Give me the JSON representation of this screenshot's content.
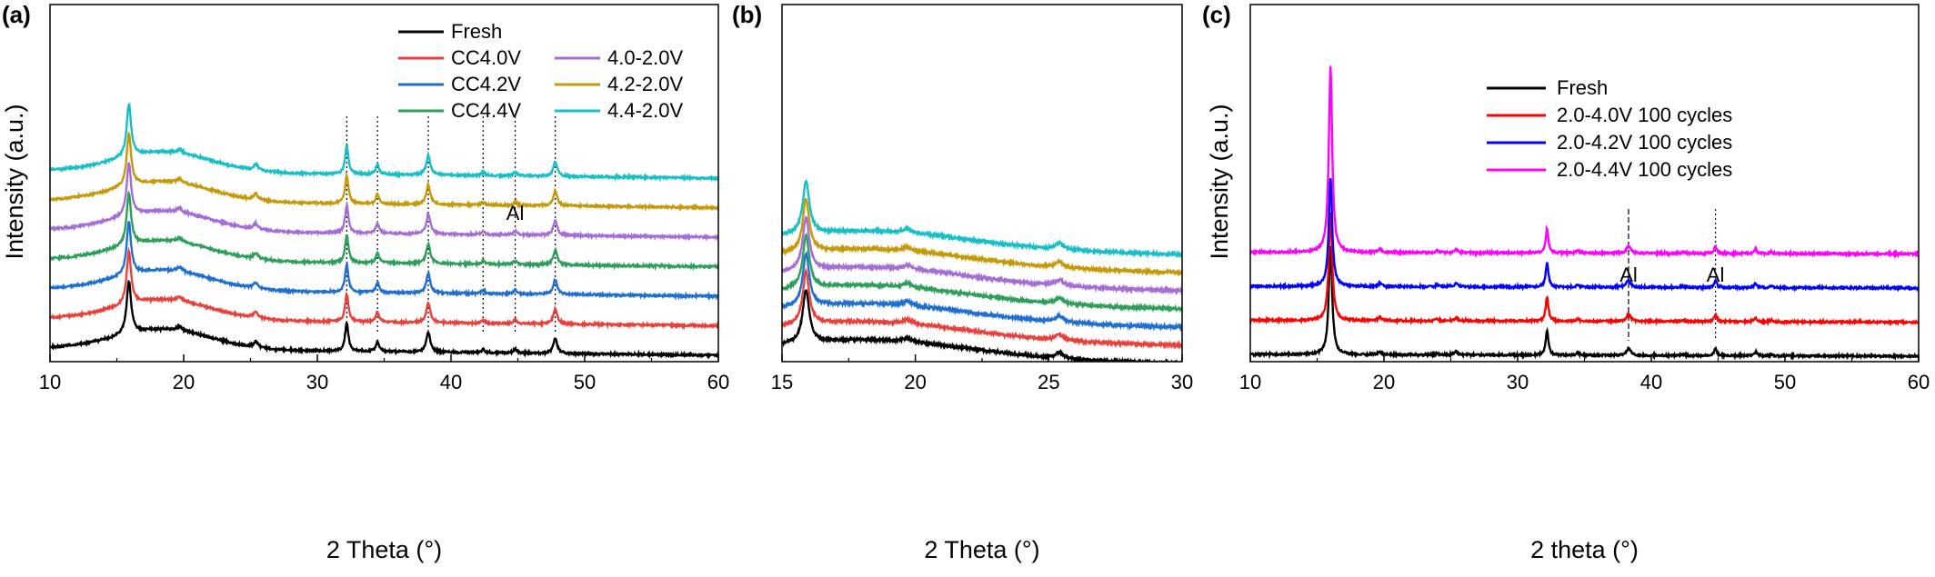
{
  "chart_data": [
    {
      "panel": "(a)",
      "type": "line",
      "xlabel": "2 Theta (°)",
      "ylabel": "Intensity (a.u.)",
      "xlim": [
        10,
        60
      ],
      "xticks": [
        "10",
        "20",
        "30",
        "40",
        "50",
        "60"
      ],
      "yticks_shown": false,
      "legend": "top-center",
      "series": [
        {
          "name": "Fresh",
          "color": "#000000",
          "offset": 0
        },
        {
          "name": "CC4.0V",
          "color": "#e8413c",
          "offset": 1
        },
        {
          "name": "CC4.2V",
          "color": "#1f6fd1",
          "offset": 2
        },
        {
          "name": "CC4.4V",
          "color": "#2e9e5b",
          "offset": 3
        },
        {
          "name": "4.0-2.0V",
          "color": "#a46ed6",
          "offset": 4
        },
        {
          "name": "4.2-2.0V",
          "color": "#c59a0a",
          "offset": 5
        },
        {
          "name": "4.4-2.0V",
          "color": "#17bfc6",
          "offset": 6
        }
      ],
      "peaks": [
        {
          "x": 15.9,
          "height": 1.6,
          "width": 0.2
        },
        {
          "x": 19.7,
          "height": 0.12,
          "width": 0.25
        },
        {
          "x": 25.4,
          "height": 0.18,
          "width": 0.2
        },
        {
          "x": 32.2,
          "height": 0.85,
          "width": 0.15
        },
        {
          "x": 34.5,
          "height": 0.3,
          "width": 0.15
        },
        {
          "x": 38.3,
          "height": 0.6,
          "width": 0.18
        },
        {
          "x": 42.4,
          "height": 0.1,
          "width": 0.15
        },
        {
          "x": 44.8,
          "height": 0.12,
          "width": 0.15
        },
        {
          "x": 47.8,
          "height": 0.45,
          "width": 0.18
        }
      ],
      "reference_lines": [
        32.2,
        34.5,
        38.3,
        42.4,
        44.8,
        47.8
      ],
      "annotations": [
        {
          "text": "Al",
          "x": 44.8
        }
      ]
    },
    {
      "panel": "(b)",
      "type": "line",
      "xlabel": "2 Theta (°)",
      "xlim": [
        15,
        30
      ],
      "xticks": [
        "15",
        "20",
        "25",
        "30"
      ],
      "yticks_shown": false,
      "series": [
        {
          "name": "Fresh",
          "color": "#000000",
          "offset": 0
        },
        {
          "name": "CC4.0V",
          "color": "#e8413c",
          "offset": 1
        },
        {
          "name": "CC4.2V",
          "color": "#1f6fd1",
          "offset": 2
        },
        {
          "name": "CC4.4V",
          "color": "#2e9e5b",
          "offset": 3
        },
        {
          "name": "4.0-2.0V",
          "color": "#a46ed6",
          "offset": 4
        },
        {
          "name": "4.2-2.0V",
          "color": "#c59a0a",
          "offset": 5
        },
        {
          "name": "4.4-2.0V",
          "color": "#17bfc6",
          "offset": 6
        }
      ],
      "peaks": [
        {
          "x": 15.9,
          "height": 1.6,
          "width": 0.15
        },
        {
          "x": 19.7,
          "height": 0.12,
          "width": 0.2
        },
        {
          "x": 25.4,
          "height": 0.18,
          "width": 0.18
        }
      ]
    },
    {
      "panel": "(c)",
      "type": "line",
      "xlabel": "2 theta (°)",
      "ylabel": "Intensity (a.u.)",
      "xlim": [
        10,
        60
      ],
      "xticks": [
        "10",
        "20",
        "30",
        "40",
        "50",
        "60"
      ],
      "yticks_shown": false,
      "legend": "top-center",
      "series": [
        {
          "name": "Fresh",
          "color": "#000000",
          "offset": 0
        },
        {
          "name": "2.0-4.0V 100 cycles",
          "color": "#ff0000",
          "offset": 1
        },
        {
          "name": "2.0-4.2V 100 cycles",
          "color": "#0000ff",
          "offset": 2
        },
        {
          "name": "2.0-4.4V 100 cycles",
          "color": "#ff00ff",
          "offset": 3
        }
      ],
      "peaks": [
        {
          "x": 16.0,
          "height": 4.0,
          "width": 0.15
        },
        {
          "x": 19.7,
          "height": 0.12,
          "width": 0.15
        },
        {
          "x": 24.0,
          "height": 0.06,
          "width": 0.15
        },
        {
          "x": 25.4,
          "height": 0.12,
          "width": 0.15
        },
        {
          "x": 32.2,
          "height": 0.9,
          "width": 0.12
        },
        {
          "x": 34.5,
          "height": 0.1,
          "width": 0.12
        },
        {
          "x": 38.3,
          "height": 0.25,
          "width": 0.2
        },
        {
          "x": 42.4,
          "height": 0.05,
          "width": 0.12
        },
        {
          "x": 44.8,
          "height": 0.25,
          "width": 0.12
        },
        {
          "x": 47.8,
          "height": 0.15,
          "width": 0.12
        },
        {
          "x": 49.0,
          "height": 0.06,
          "width": 0.12
        }
      ],
      "reference_lines": [
        38.3,
        44.8
      ],
      "annotations": [
        {
          "text": "Al",
          "x": 38.3
        },
        {
          "text": "Al",
          "x": 44.8
        }
      ]
    }
  ]
}
